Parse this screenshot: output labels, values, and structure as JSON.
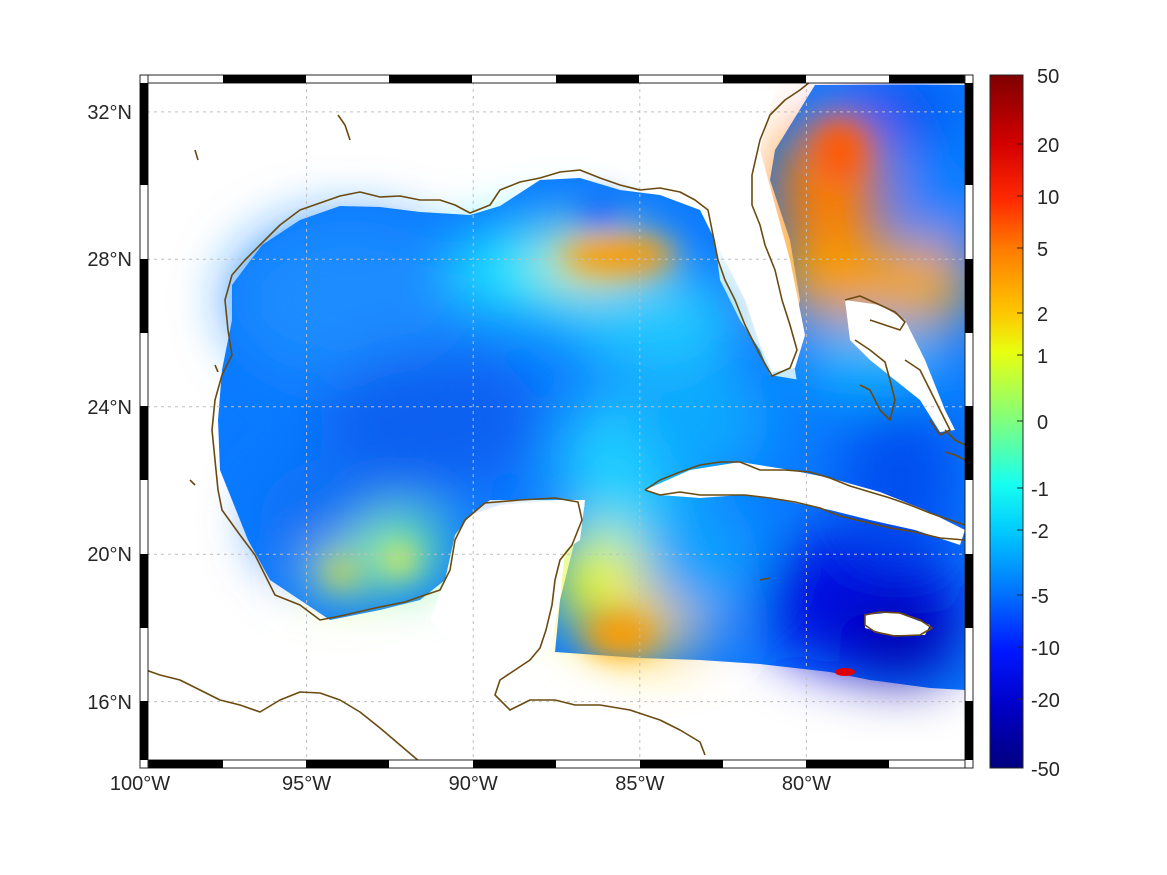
{
  "map": {
    "lon_range": [
      -100,
      -75
    ],
    "lat_range": [
      14.2,
      33
    ],
    "lon_ticks": [
      {
        "value": -100,
        "label": "100°W"
      },
      {
        "value": -95,
        "label": "95°W"
      },
      {
        "value": -90,
        "label": "90°W"
      },
      {
        "value": -85,
        "label": "85°W"
      },
      {
        "value": -80,
        "label": "80°W"
      }
    ],
    "lat_ticks": [
      {
        "value": 32,
        "label": "32°N"
      },
      {
        "value": 28,
        "label": "28°N"
      },
      {
        "value": 24,
        "label": "24°N"
      },
      {
        "value": 20,
        "label": "20°N"
      },
      {
        "value": 16,
        "label": "16°N"
      }
    ],
    "grid": true,
    "frame_style": "alternating black/white border",
    "coastline_color": "#6b4a10",
    "land_color": "#ffffff",
    "colormap": "jet"
  },
  "colorbar": {
    "position": "right",
    "tick_labels": [
      "50",
      "20",
      "10",
      "5",
      "2",
      "1",
      "0",
      "-1",
      "-2",
      "-5",
      "-10",
      "-20",
      "-50"
    ],
    "colors_top_to_bottom": [
      "#7f0000",
      "#d40000",
      "#ff2a00",
      "#ff7a00",
      "#ffc400",
      "#e8ff10",
      "#7fff7f",
      "#17fff0",
      "#00c8ff",
      "#0070ff",
      "#0018ff",
      "#0000c8",
      "#00007f"
    ]
  }
}
